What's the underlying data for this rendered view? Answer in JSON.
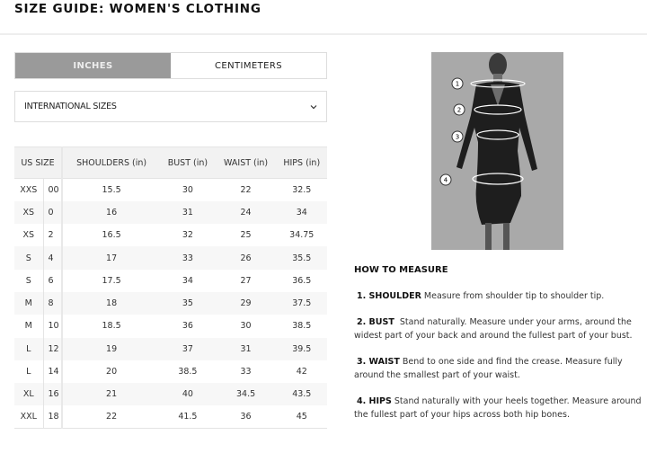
{
  "title": "SIZE GUIDE: WOMEN'S CLOTHING",
  "tabs": [
    {
      "label": "INCHES",
      "active": true
    },
    {
      "label": "CENTIMETERS",
      "active": false
    }
  ],
  "size_select": {
    "value": "INTERNATIONAL SIZES",
    "icon": "chevron-down-icon"
  },
  "table": {
    "headers": [
      "US SIZE",
      "SHOULDERS (in)",
      "BUST (in)",
      "WAIST (in)",
      "HIPS (in)"
    ],
    "rows": [
      [
        "XXS",
        "00",
        "15.5",
        "30",
        "22",
        "32.5"
      ],
      [
        "XS",
        "0",
        "16",
        "31",
        "24",
        "34"
      ],
      [
        "XS",
        "2",
        "16.5",
        "32",
        "25",
        "34.75"
      ],
      [
        "S",
        "4",
        "17",
        "33",
        "26",
        "35.5"
      ],
      [
        "S",
        "6",
        "17.5",
        "34",
        "27",
        "36.5"
      ],
      [
        "M",
        "8",
        "18",
        "35",
        "29",
        "37.5"
      ],
      [
        "M",
        "10",
        "18.5",
        "36",
        "30",
        "38.5"
      ],
      [
        "L",
        "12",
        "19",
        "37",
        "31",
        "39.5"
      ],
      [
        "L",
        "14",
        "20",
        "38.5",
        "33",
        "42"
      ],
      [
        "XL",
        "16",
        "21",
        "40",
        "34.5",
        "43.5"
      ],
      [
        "XXL",
        "18",
        "22",
        "41.5",
        "36",
        "45"
      ]
    ]
  },
  "figure": {
    "markers": [
      "1",
      "2",
      "3",
      "4"
    ]
  },
  "how_to": {
    "heading": "HOW TO MEASURE",
    "steps": [
      {
        "label": "1. SHOULDER",
        "text": "Measure from shoulder tip to shoulder tip."
      },
      {
        "label": "2. BUST",
        "text": "Stand naturally. Measure under your arms, around the widest part of your back and around the fullest part of your bust."
      },
      {
        "label": "3. WAIST",
        "text": "Bend to one side and find the crease. Measure fully around the smallest part of your waist."
      },
      {
        "label": "4. HIPS",
        "text": "Stand naturally with your heels together. Measure around the fullest part of your hips across both hip bones."
      }
    ]
  }
}
